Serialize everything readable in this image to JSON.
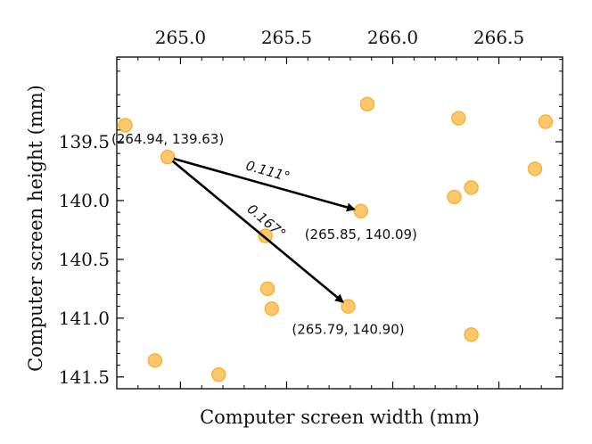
{
  "chart_data": {
    "type": "scatter",
    "title": "",
    "xlabel": "Computer screen width (mm)",
    "ylabel": "Computer screen height (mm)",
    "xlim": [
      264.7,
      266.8
    ],
    "ylim": [
      141.6,
      138.78
    ],
    "y_inverted": true,
    "x_axis_position": "top",
    "grid": false,
    "x_ticks": [
      265.0,
      265.5,
      266.0,
      266.5
    ],
    "x_tick_labels": [
      "265.0",
      "265.5",
      "266.0",
      "266.5"
    ],
    "y_ticks": [
      139.5,
      140.0,
      140.5,
      141.0,
      141.5
    ],
    "y_tick_labels": [
      "139.5",
      "140.0",
      "140.5",
      "141.0",
      "141.5"
    ],
    "marker_color": "#fcc86a",
    "marker_edge_color": "#f6b23e",
    "arrow_color": "#000000",
    "points": [
      {
        "x": 264.74,
        "y": 139.36
      },
      {
        "x": 264.94,
        "y": 139.63
      },
      {
        "x": 264.88,
        "y": 141.36
      },
      {
        "x": 265.18,
        "y": 141.48
      },
      {
        "x": 265.4,
        "y": 140.3
      },
      {
        "x": 265.41,
        "y": 140.75
      },
      {
        "x": 265.43,
        "y": 140.92
      },
      {
        "x": 265.79,
        "y": 140.9
      },
      {
        "x": 265.85,
        "y": 140.09
      },
      {
        "x": 265.88,
        "y": 139.18
      },
      {
        "x": 266.29,
        "y": 139.97
      },
      {
        "x": 266.31,
        "y": 139.3
      },
      {
        "x": 266.37,
        "y": 139.89
      },
      {
        "x": 266.37,
        "y": 141.14
      },
      {
        "x": 266.67,
        "y": 139.73
      },
      {
        "x": 266.72,
        "y": 139.33
      }
    ],
    "arrows": [
      {
        "from": [
          264.94,
          139.63
        ],
        "to": [
          265.85,
          140.09
        ],
        "label": "0.111°"
      },
      {
        "from": [
          264.94,
          139.63
        ],
        "to": [
          265.79,
          140.9
        ],
        "label": "0.167°"
      }
    ],
    "annotations": [
      {
        "text": "(264.94, 139.63)",
        "x": 264.94,
        "y": 139.63,
        "anchor": "above"
      },
      {
        "text": "(265.85, 140.09)",
        "x": 265.85,
        "y": 140.09,
        "anchor": "below"
      },
      {
        "text": "(265.79, 140.90)",
        "x": 265.79,
        "y": 140.9,
        "anchor": "below"
      }
    ]
  }
}
